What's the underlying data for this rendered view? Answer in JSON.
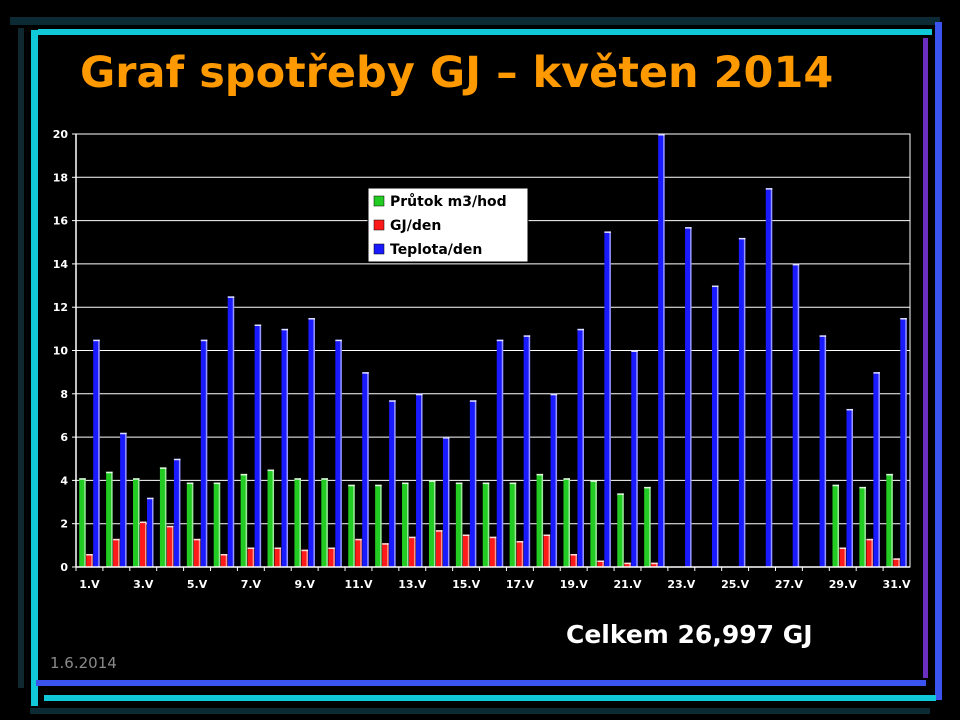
{
  "slide": {
    "title": "Graf spotřeby GJ – květen 2014",
    "total": "Celkem 26,997 GJ",
    "date": "1.6.2014"
  },
  "colors": {
    "title": "#ff9900",
    "series": [
      "#22cc22",
      "#ff1a1a",
      "#1a1aff"
    ]
  },
  "chart_data": {
    "type": "bar",
    "title": "",
    "xlabel": "",
    "ylabel": "",
    "ylim": [
      0,
      20
    ],
    "yticks": [
      0,
      2,
      4,
      6,
      8,
      10,
      12,
      14,
      16,
      18,
      20
    ],
    "grid": true,
    "legend_position": "top-center",
    "categories": [
      "1.V",
      "2.V",
      "3.V",
      "4.V",
      "5.V",
      "6.V",
      "7.V",
      "8.V",
      "9.V",
      "10.V",
      "11.V",
      "12.V",
      "13.V",
      "14.V",
      "15.V",
      "16.V",
      "17.V",
      "18.V",
      "19.V",
      "20.V",
      "21.V",
      "22.V",
      "23.V",
      "24.V",
      "25.V",
      "26.V",
      "27.V",
      "28.V",
      "29.V",
      "30.V",
      "31.V"
    ],
    "tick_labels": [
      "1.V",
      "3.V",
      "5.V",
      "7.V",
      "9.V",
      "11.V",
      "13.V",
      "15.V",
      "17.V",
      "19.V",
      "21.V",
      "23.V",
      "25.V",
      "27.V",
      "29.V",
      "31.V"
    ],
    "series": [
      {
        "name": "Průtok m3/hod",
        "values": [
          4.1,
          4.4,
          4.1,
          4.6,
          3.9,
          3.9,
          4.3,
          4.5,
          4.1,
          4.1,
          3.8,
          3.8,
          3.9,
          4.0,
          3.9,
          3.9,
          3.9,
          4.3,
          4.1,
          4.0,
          3.4,
          3.7,
          0,
          0,
          0,
          0,
          0,
          0,
          3.8,
          3.7,
          4.3
        ]
      },
      {
        "name": "GJ/den",
        "values": [
          0.6,
          1.3,
          2.1,
          1.9,
          1.3,
          0.6,
          0.9,
          0.9,
          0.8,
          0.9,
          1.3,
          1.1,
          1.4,
          1.7,
          1.5,
          1.4,
          1.2,
          1.5,
          0.6,
          0.3,
          0.2,
          0.2,
          0,
          0,
          0,
          0,
          0,
          0,
          0.9,
          1.3,
          0.4
        ]
      },
      {
        "name": "Teplota/den",
        "values": [
          10.5,
          6.2,
          3.2,
          5.0,
          10.5,
          12.5,
          11.2,
          11.0,
          11.5,
          10.5,
          9.0,
          7.7,
          8.0,
          6.0,
          7.7,
          10.5,
          10.7,
          8.0,
          11.0,
          15.5,
          10.0,
          20.0,
          15.7,
          13.0,
          15.2,
          17.5,
          14.0,
          10.7,
          7.3,
          9.0,
          11.5
        ]
      }
    ]
  }
}
